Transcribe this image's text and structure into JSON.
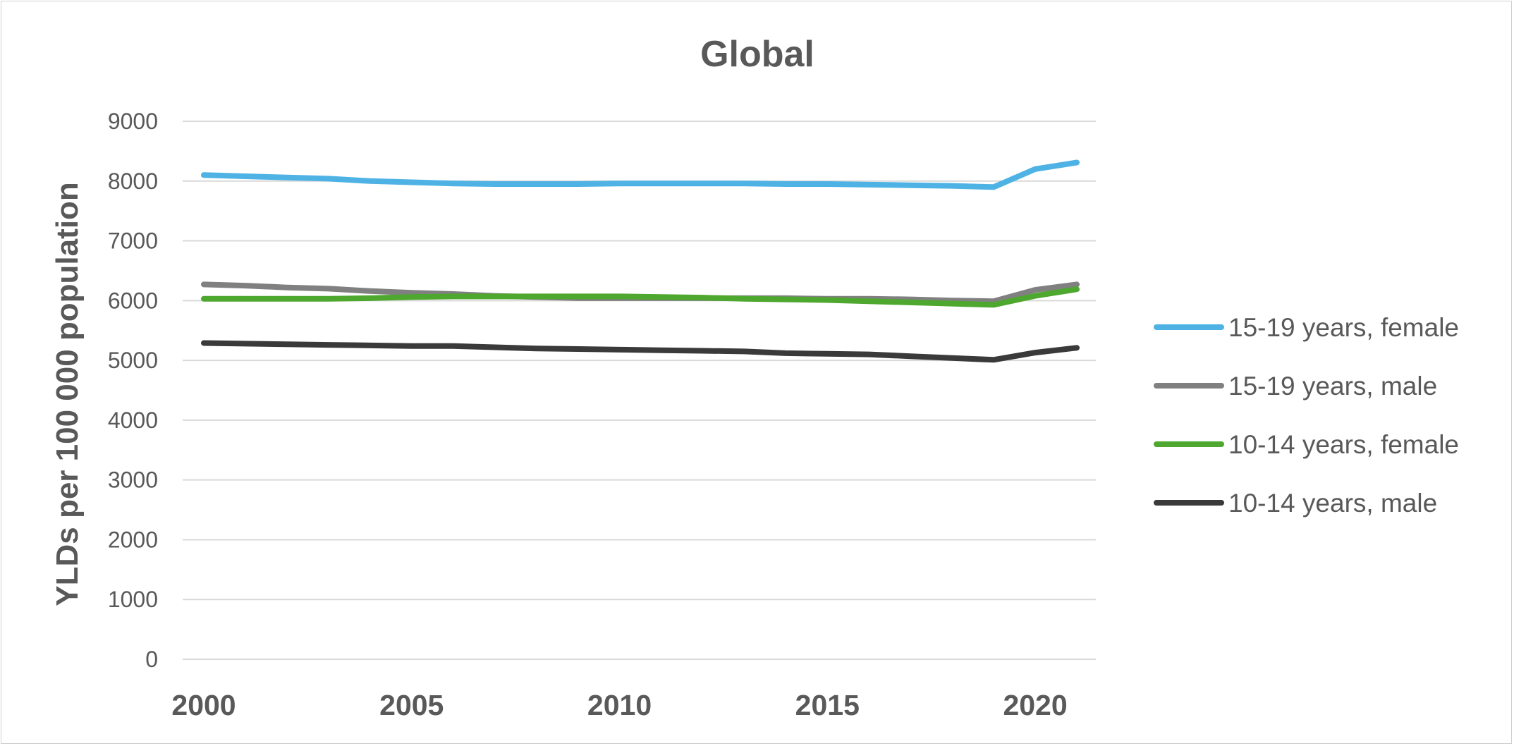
{
  "chart_data": {
    "type": "line",
    "title": "Global",
    "xlabel": "",
    "ylabel": "YLDs per 100 000 population",
    "xlim": [
      2000,
      2021
    ],
    "ylim": [
      0,
      9000
    ],
    "grid": true,
    "legend_position": "right",
    "x_ticks": [
      "2000",
      "2005",
      "2010",
      "2015",
      "2020"
    ],
    "y_ticks": [
      "0",
      "1000",
      "2000",
      "3000",
      "4000",
      "5000",
      "6000",
      "7000",
      "8000",
      "9000"
    ],
    "x": [
      2000,
      2001,
      2002,
      2003,
      2004,
      2005,
      2006,
      2007,
      2008,
      2009,
      2010,
      2011,
      2012,
      2013,
      2014,
      2015,
      2016,
      2017,
      2018,
      2019,
      2020,
      2021
    ],
    "series": [
      {
        "name": "15-19 years, female",
        "color": "#4EB3E4",
        "values": [
          8100,
          8080,
          8060,
          8040,
          8000,
          7980,
          7960,
          7950,
          7950,
          7950,
          7960,
          7960,
          7960,
          7960,
          7950,
          7950,
          7940,
          7930,
          7920,
          7900,
          8200,
          8310
        ]
      },
      {
        "name": "15-19 years, male",
        "color": "#808080",
        "values": [
          6270,
          6250,
          6220,
          6200,
          6160,
          6130,
          6110,
          6080,
          6060,
          6040,
          6040,
          6040,
          6040,
          6040,
          6040,
          6030,
          6030,
          6020,
          6000,
          5990,
          6180,
          6270
        ]
      },
      {
        "name": "10-14 years, female",
        "color": "#4EA72E",
        "values": [
          6030,
          6030,
          6030,
          6030,
          6040,
          6060,
          6070,
          6070,
          6070,
          6070,
          6070,
          6060,
          6050,
          6030,
          6020,
          6010,
          5990,
          5970,
          5950,
          5930,
          6080,
          6190
        ]
      },
      {
        "name": "10-14 years, male",
        "color": "#3A3A3A",
        "values": [
          5290,
          5280,
          5270,
          5260,
          5250,
          5240,
          5240,
          5220,
          5200,
          5190,
          5180,
          5170,
          5160,
          5150,
          5120,
          5110,
          5100,
          5070,
          5040,
          5010,
          5130,
          5210
        ]
      }
    ]
  }
}
